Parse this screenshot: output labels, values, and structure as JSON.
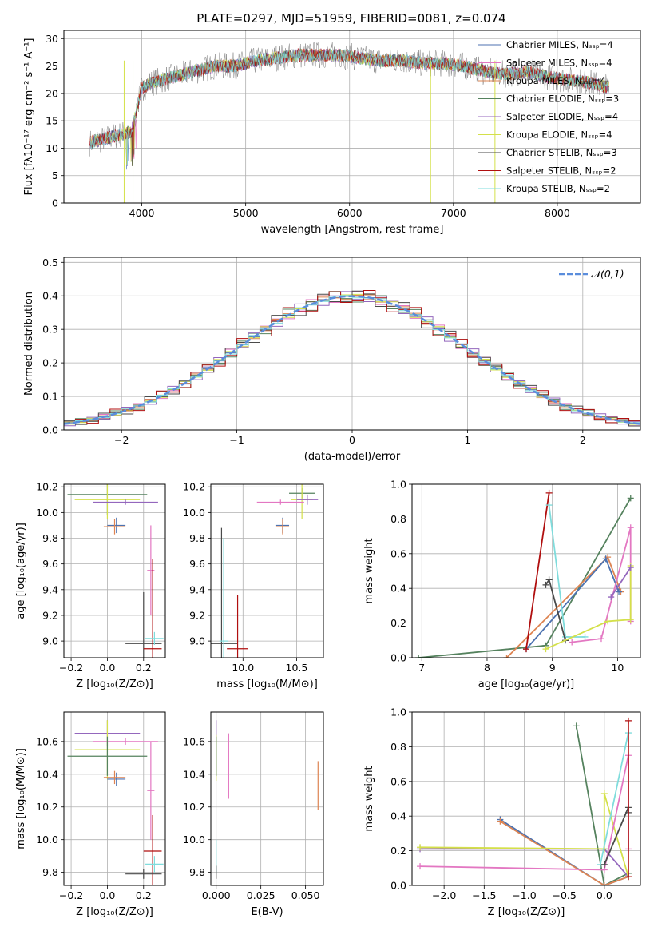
{
  "figure_title": "PLATE=0297, MJD=51959, FIBERID=0081, z=0.074",
  "colors": {
    "chabrier_miles": "#4c72b0",
    "salpeter_miles": "#e377c2",
    "kroupa_miles": "#dd8452",
    "chabrier_elodie": "#55825e",
    "salpeter_elodie": "#9467bd",
    "kroupa_elodie": "#d4e04a",
    "chabrier_stelib": "#4a4a4a",
    "salpeter_stelib": "#b00f0f",
    "kroupa_stelib": "#7fdcdc",
    "normal_curve": "#5a8ddc",
    "spectrum_gray": "#7f7f7f"
  },
  "chart_data": [
    {
      "type": "line",
      "xlabel": "wavelength [Angstrom, rest frame]",
      "ylabel": "Flux [fλ10⁻¹⁷ erg cm⁻² s⁻¹ A⁻¹]",
      "xlim": [
        3250,
        8800
      ],
      "ylim": [
        0,
        31.5
      ],
      "xticks": [
        "4000",
        "5000",
        "6000",
        "7000",
        "8000"
      ],
      "yticks": [
        "0",
        "5",
        "10",
        "15",
        "20",
        "25",
        "30"
      ],
      "legend_position": "top-right",
      "legend": [
        "Chabrier MILES, Nₛₛₚ=4",
        "Salpeter MILES, Nₛₛₚ=4",
        "Kroupa MILES, Nₛₛₚ=4",
        "Chabrier ELODIE, Nₛₛₚ=3",
        "Salpeter ELODIE, Nₛₛₚ=4",
        "Kroupa ELODIE, Nₛₛₚ=4",
        "Chabrier STELIB, Nₛₛₚ=3",
        "Salpeter STELIB, Nₛₛₚ=2",
        "Kroupa STELIB, Nₛₛₚ=2"
      ],
      "x": [
        3500,
        3700,
        3900,
        4000,
        4100,
        4300,
        4500,
        4700,
        4900,
        5100,
        5300,
        5500,
        5700,
        5900,
        6100,
        6300,
        6500,
        6700,
        6900,
        7100,
        7300,
        7500,
        7700,
        7900,
        8100,
        8300,
        8500
      ],
      "y": [
        11,
        12,
        13,
        21,
        22,
        23,
        24,
        25,
        25,
        26,
        26.5,
        27,
        27,
        27,
        26.5,
        26,
        26,
        25.5,
        25.5,
        25,
        24,
        23.5,
        24,
        23,
        22.5,
        22,
        21
      ]
    },
    {
      "type": "bar",
      "xlabel": "(data-model)/error",
      "ylabel": "Normed distribution",
      "xlim": [
        -2.5,
        2.5
      ],
      "ylim": [
        0,
        0.515
      ],
      "xticks": [
        "−2",
        "−1",
        "0",
        "1",
        "2"
      ],
      "yticks": [
        "0.0",
        "0.1",
        "0.2",
        "0.3",
        "0.4",
        "0.5"
      ],
      "legend_position": "top-right",
      "legend": [
        "𝒩(0,1)"
      ],
      "bin_width": 0.1,
      "bins_start": -2.5,
      "series_offsets": [
        0,
        0.018,
        -0.012,
        0.024,
        -0.02,
        0.01,
        -0.026,
        0.03,
        -0.006
      ]
    },
    {
      "type": "scatter",
      "xlabel": "Z [log₁₀(Z/Z⊙)]",
      "ylabel": "age  [log₁₀(age/yr)]",
      "xlim": [
        -0.24,
        0.32
      ],
      "ylim": [
        8.87,
        10.22
      ],
      "xticks": [
        "−0.2",
        "0.0",
        "0.2"
      ],
      "yticks": [
        "9.0",
        "9.2",
        "9.4",
        "9.6",
        "9.8",
        "10.0",
        "10.2"
      ],
      "points": [
        {
          "series": "chabrier_elodie",
          "x": 0.0,
          "xerr": 0.22,
          "y": 10.14,
          "yerr": 0.16
        },
        {
          "series": "kroupa_elodie",
          "x": 0.0,
          "xerr": 0.18,
          "y": 10.1,
          "yerr": 0.15
        },
        {
          "series": "salpeter_elodie",
          "x": 0.1,
          "xerr": 0.18,
          "y": 10.08,
          "yerr": 0.02
        },
        {
          "series": "chabrier_miles",
          "x": 0.05,
          "xerr": 0.05,
          "y": 9.9,
          "yerr": 0.06
        },
        {
          "series": "kroupa_miles",
          "x": 0.04,
          "xerr": 0.06,
          "y": 9.89,
          "yerr": 0.06
        },
        {
          "series": "salpeter_miles",
          "x": 0.24,
          "xerr": 0.02,
          "y": 9.55,
          "yerr": 0.35
        },
        {
          "series": "chabrier_stelib",
          "x": 0.2,
          "xerr": 0.1,
          "y": 8.98,
          "yerr": 0.4
        },
        {
          "series": "salpeter_stelib",
          "x": 0.25,
          "xerr": 0.05,
          "y": 8.94,
          "yerr": 0.7
        },
        {
          "series": "kroupa_stelib",
          "x": 0.26,
          "xerr": 0.05,
          "y": 9.02,
          "yerr": 0.05
        }
      ]
    },
    {
      "type": "scatter",
      "xlabel": "mass [log₁₀(M/M⊙)]",
      "ylabel": "",
      "xlim": [
        9.7,
        10.75
      ],
      "ylim": [
        8.87,
        10.22
      ],
      "xticks": [
        "10.0",
        "10.5"
      ],
      "yticks": [
        "9.0",
        "9.2",
        "9.4",
        "9.6",
        "9.8",
        "10.0",
        "10.2"
      ],
      "points": [
        {
          "series": "chabrier_elodie",
          "x": 10.55,
          "xerr": 0.12,
          "y": 10.15,
          "yerr": 0.04
        },
        {
          "series": "kroupa_elodie",
          "x": 10.55,
          "xerr": 0.1,
          "y": 10.1,
          "yerr": 0.15
        },
        {
          "series": "salpeter_elodie",
          "x": 10.6,
          "xerr": 0.1,
          "y": 10.1,
          "yerr": 0.04
        },
        {
          "series": "salpeter_miles",
          "x": 10.35,
          "xerr": 0.22,
          "y": 10.08,
          "yerr": 0.02
        },
        {
          "series": "chabrier_miles",
          "x": 10.37,
          "xerr": 0.06,
          "y": 9.9,
          "yerr": 0.06
        },
        {
          "series": "kroupa_miles",
          "x": 10.37,
          "xerr": 0.06,
          "y": 9.89,
          "yerr": 0.06
        },
        {
          "series": "chabrier_stelib",
          "x": 9.8,
          "xerr": 0.15,
          "y": 8.98,
          "yerr": 0.9
        },
        {
          "series": "salpeter_stelib",
          "x": 9.95,
          "xerr": 0.1,
          "y": 8.94,
          "yerr": 0.42
        },
        {
          "series": "kroupa_stelib",
          "x": 9.82,
          "xerr": 0.04,
          "y": 9.0,
          "yerr": 0.8
        }
      ]
    },
    {
      "type": "line",
      "xlabel": "age  [log₁₀(age/yr)]",
      "ylabel": "mass weight",
      "xlim": [
        6.85,
        10.35
      ],
      "ylim": [
        0,
        1
      ],
      "xticks": [
        "7",
        "8",
        "9",
        "10"
      ],
      "yticks": [
        "0.0",
        "0.2",
        "0.4",
        "0.6",
        "0.8",
        "1.0"
      ],
      "series": [
        {
          "series": "chabrier_elodie",
          "x": [
            6.95,
            8.9,
            10.2
          ],
          "y": [
            0.0,
            0.07,
            0.92
          ]
        },
        {
          "series": "kroupa_miles",
          "x": [
            8.3,
            9.85,
            10.05
          ],
          "y": [
            0.0,
            0.58,
            0.38
          ]
        },
        {
          "series": "chabrier_miles",
          "x": [
            8.6,
            9.82,
            10.02
          ],
          "y": [
            0.05,
            0.57,
            0.38
          ]
        },
        {
          "series": "salpeter_stelib",
          "x": [
            8.6,
            8.95
          ],
          "y": [
            0.05,
            0.95
          ]
        },
        {
          "series": "kroupa_stelib",
          "x": [
            8.95,
            9.2,
            9.5
          ],
          "y": [
            0.88,
            0.12,
            0.12
          ]
        },
        {
          "series": "chabrier_stelib",
          "x": [
            8.9,
            8.95,
            9.2
          ],
          "y": [
            0.42,
            0.45,
            0.1
          ]
        },
        {
          "series": "salpeter_miles",
          "x": [
            9.3,
            9.75,
            10.2,
            10.2
          ],
          "y": [
            0.09,
            0.11,
            0.75,
            0.21
          ]
        },
        {
          "series": "kroupa_elodie",
          "x": [
            8.9,
            9.85,
            10.2,
            10.2
          ],
          "y": [
            0.05,
            0.21,
            0.22,
            0.53
          ]
        },
        {
          "series": "salpeter_elodie",
          "x": [
            9.9,
            10.2
          ],
          "y": [
            0.35,
            0.52
          ]
        }
      ]
    },
    {
      "type": "scatter",
      "xlabel": "Z [log₁₀(Z/Z⊙)]",
      "ylabel": "mass [log₁₀(M/M⊙)]",
      "xlim": [
        -0.24,
        0.32
      ],
      "ylim": [
        9.72,
        10.78
      ],
      "xticks": [
        "−0.2",
        "0.0",
        "0.2"
      ],
      "yticks": [
        "9.8",
        "10.0",
        "10.2",
        "10.4",
        "10.6"
      ],
      "points": [
        {
          "series": "salpeter_elodie",
          "x": 0.0,
          "xerr": 0.18,
          "y": 10.65,
          "yerr": 0.08
        },
        {
          "series": "salpeter_miles",
          "x": 0.1,
          "xerr": 0.18,
          "y": 10.6,
          "yerr": 0.02
        },
        {
          "series": "kroupa_elodie",
          "x": 0.0,
          "xerr": 0.18,
          "y": 10.55,
          "yerr": 0.18
        },
        {
          "series": "chabrier_elodie",
          "x": 0.0,
          "xerr": 0.22,
          "y": 10.51,
          "yerr": 0.12
        },
        {
          "series": "chabrier_miles",
          "x": 0.05,
          "xerr": 0.05,
          "y": 10.37,
          "yerr": 0.04
        },
        {
          "series": "kroupa_miles",
          "x": 0.04,
          "xerr": 0.06,
          "y": 10.38,
          "yerr": 0.04
        },
        {
          "series": "salpeter_miles",
          "x": 0.24,
          "xerr": 0.02,
          "y": 10.3,
          "yerr": 0.3
        },
        {
          "series": "salpeter_stelib",
          "x": 0.25,
          "xerr": 0.05,
          "y": 9.93,
          "yerr": 0.22
        },
        {
          "series": "kroupa_stelib",
          "x": 0.26,
          "xerr": 0.05,
          "y": 9.85,
          "yerr": 0.05
        },
        {
          "series": "chabrier_stelib",
          "x": 0.2,
          "xerr": 0.1,
          "y": 9.79,
          "yerr": 0.03
        }
      ]
    },
    {
      "type": "scatter",
      "xlabel": "E(B-V)",
      "ylabel": "",
      "xlim": [
        -0.003,
        0.06
      ],
      "ylim": [
        9.72,
        10.78
      ],
      "xticks": [
        "0.000",
        "0.025",
        "0.050"
      ],
      "yticks": [
        "9.8",
        "10.0",
        "10.2",
        "10.4",
        "10.6"
      ],
      "points": [
        {
          "series": "salpeter_elodie",
          "x": 0.0,
          "xerr": 0.0,
          "y": 10.68,
          "yerr": 0.05
        },
        {
          "series": "kroupa_elodie",
          "x": 0.0,
          "xerr": 0.0,
          "y": 10.5,
          "yerr": 0.14
        },
        {
          "series": "chabrier_elodie",
          "x": 0.0,
          "xerr": 0.0,
          "y": 10.51,
          "yerr": 0.12
        },
        {
          "series": "salpeter_miles",
          "x": 0.007,
          "xerr": 0.0,
          "y": 10.45,
          "yerr": 0.2
        },
        {
          "series": "kroupa_miles",
          "x": 0.057,
          "xerr": 0.0,
          "y": 10.33,
          "yerr": 0.15
        },
        {
          "series": "kroupa_stelib",
          "x": 0.0,
          "xerr": 0.0,
          "y": 9.9,
          "yerr": 0.1
        },
        {
          "series": "chabrier_stelib",
          "x": 0.0,
          "xerr": 0.0,
          "y": 9.8,
          "yerr": 0.04
        }
      ]
    },
    {
      "type": "line",
      "xlabel": "Z [log₁₀(Z/Z⊙)]",
      "ylabel": "mass weight",
      "xlim": [
        -2.4,
        0.45
      ],
      "ylim": [
        0,
        1
      ],
      "xticks": [
        "−2.0",
        "−1.5",
        "−1.0",
        "−0.5",
        "0.0"
      ],
      "yticks": [
        "0.0",
        "0.2",
        "0.4",
        "0.6",
        "0.8",
        "1.0"
      ],
      "series": [
        {
          "series": "chabrier_elodie",
          "x": [
            -0.35,
            0.0,
            0.3
          ],
          "y": [
            0.92,
            0.0,
            0.07
          ]
        },
        {
          "series": "chabrier_miles",
          "x": [
            -1.3,
            0.0,
            0.3
          ],
          "y": [
            0.38,
            0.0,
            0.05
          ]
        },
        {
          "series": "kroupa_miles",
          "x": [
            -1.3,
            0.0,
            0.3
          ],
          "y": [
            0.37,
            0.0,
            0.05
          ]
        },
        {
          "series": "salpeter_elodie",
          "x": [
            -2.3,
            0.0,
            0.3
          ],
          "y": [
            0.21,
            0.21,
            0.05
          ]
        },
        {
          "series": "kroupa_elodie",
          "x": [
            -2.3,
            0.0,
            0.0,
            0.3
          ],
          "y": [
            0.22,
            0.21,
            0.53,
            0.05
          ]
        },
        {
          "series": "salpeter_miles",
          "x": [
            -2.3,
            0.0,
            0.3,
            0.3
          ],
          "y": [
            0.11,
            0.09,
            0.75,
            0.21
          ]
        },
        {
          "series": "kroupa_stelib",
          "x": [
            -0.05,
            0.3
          ],
          "y": [
            0.12,
            0.88
          ]
        },
        {
          "series": "chabrier_stelib",
          "x": [
            0.0,
            0.3,
            0.3
          ],
          "y": [
            0.12,
            0.45,
            0.42
          ]
        },
        {
          "series": "salpeter_stelib",
          "x": [
            0.3,
            0.3
          ],
          "y": [
            0.05,
            0.95
          ]
        }
      ]
    }
  ]
}
